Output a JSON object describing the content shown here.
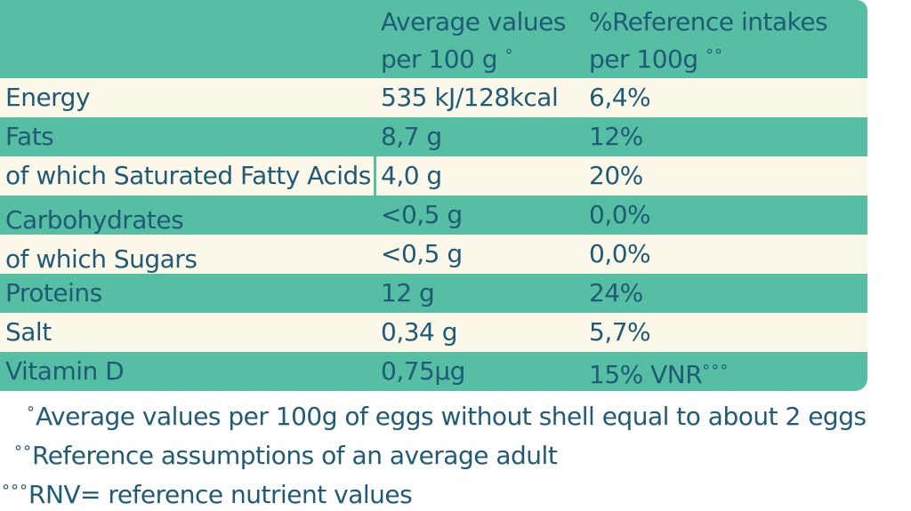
{
  "header": {
    "col2": {
      "line1": "Average values",
      "line2": "per 100 g",
      "mark": "°"
    },
    "col3": {
      "line1": "%Reference intakes",
      "line2": "per 100g",
      "mark": "°°"
    }
  },
  "rows": [
    {
      "name": "Energy",
      "value": "535 kJ/128kcal",
      "ri": "6,4%"
    },
    {
      "name": "Fats",
      "value": "8,7 g",
      "ri": "12%"
    },
    {
      "name": "of which Saturated Fatty Acids",
      "value": "4,0 g",
      "ri": "20%"
    },
    {
      "name": "Carbohydrates",
      "value": "<0,5 g",
      "ri": "0,0%"
    },
    {
      "name": "of which Sugars",
      "value": "<0,5 g",
      "ri": "0,0%"
    },
    {
      "name": "Proteins",
      "value": "12 g",
      "ri": "24%"
    },
    {
      "name": "Salt",
      "value": "0,34 g",
      "ri": "5,7%"
    },
    {
      "name": "Vitamin D",
      "value": "0,75µg",
      "ri": "15% VNR",
      "ri_mark": "°°°"
    }
  ],
  "footnotes": [
    {
      "mark": "°",
      "text": "Average values per 100g of eggs without shell equal to about 2 eggs"
    },
    {
      "mark": "°°",
      "text": "Reference assumptions of an average adult"
    },
    {
      "mark": "°°°",
      "text": "RNV= reference nutrient values"
    }
  ],
  "colors": {
    "teal": "#56bfa3",
    "cream": "#fbf8e9",
    "text": "#1f5a77"
  }
}
